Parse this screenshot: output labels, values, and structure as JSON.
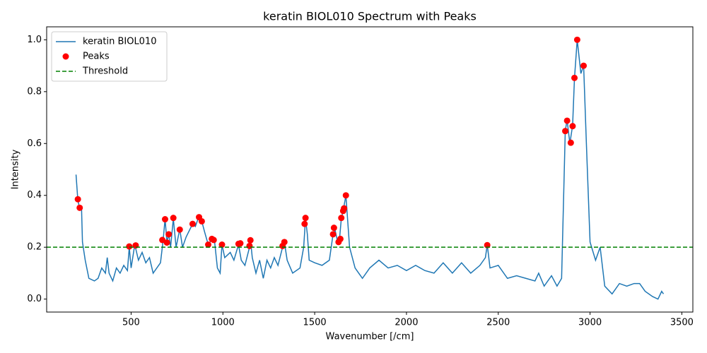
{
  "chart_data": {
    "type": "line",
    "title": "keratin BIOL010 Spectrum with Peaks",
    "xlabel": "Wavenumber [/cm]",
    "ylabel": "Intensity",
    "xlim": [
      40,
      3560
    ],
    "ylim": [
      -0.05,
      1.05
    ],
    "xticks": [
      500,
      1000,
      1500,
      2000,
      2500,
      3000,
      3500
    ],
    "yticks": [
      {
        "value": 0,
        "label": "0.0"
      },
      0.2,
      0.4,
      0.6,
      0.8,
      {
        "value": 1,
        "label": "1.0"
      }
    ],
    "grid": false,
    "legend": "upper left",
    "series": [
      {
        "name": "keratin BIOL010",
        "type": "line",
        "color": "#1f77b4",
        "x": [
          200,
          210,
          220,
          230,
          235,
          250,
          270,
          300,
          320,
          340,
          360,
          370,
          380,
          400,
          420,
          440,
          460,
          480,
          490,
          500,
          520,
          540,
          560,
          580,
          600,
          620,
          640,
          660,
          675,
          685,
          695,
          705,
          715,
          730,
          745,
          765,
          780,
          800,
          835,
          850,
          870,
          885,
          900,
          920,
          940,
          955,
          970,
          985,
          995,
          1010,
          1040,
          1060,
          1085,
          1100,
          1120,
          1145,
          1150,
          1160,
          1180,
          1200,
          1220,
          1240,
          1260,
          1280,
          1300,
          1325,
          1335,
          1350,
          1380,
          1420,
          1440,
          1450,
          1460,
          1470,
          1500,
          1540,
          1580,
          1600,
          1610,
          1625,
          1635,
          1645,
          1655,
          1670,
          1690,
          1720,
          1760,
          1800,
          1850,
          1900,
          1950,
          2000,
          2050,
          2100,
          2150,
          2200,
          2250,
          2300,
          2350,
          2400,
          2430,
          2440,
          2455,
          2500,
          2550,
          2600,
          2650,
          2700,
          2720,
          2750,
          2790,
          2820,
          2845,
          2865,
          2875,
          2890,
          2905,
          2915,
          2930,
          2950,
          2965,
          2980,
          3000,
          3030,
          3055,
          3080,
          3120,
          3160,
          3200,
          3240,
          3270,
          3300,
          3340,
          3370,
          3390,
          3400
        ],
        "values": [
          0.48,
          0.38,
          0.35,
          0.35,
          0.22,
          0.15,
          0.08,
          0.07,
          0.08,
          0.12,
          0.1,
          0.16,
          0.1,
          0.07,
          0.12,
          0.1,
          0.13,
          0.11,
          0.2,
          0.12,
          0.21,
          0.15,
          0.18,
          0.14,
          0.16,
          0.1,
          0.12,
          0.14,
          0.23,
          0.31,
          0.22,
          0.25,
          0.2,
          0.31,
          0.2,
          0.27,
          0.2,
          0.24,
          0.29,
          0.28,
          0.32,
          0.3,
          0.26,
          0.21,
          0.23,
          0.22,
          0.12,
          0.1,
          0.21,
          0.16,
          0.18,
          0.15,
          0.21,
          0.15,
          0.13,
          0.2,
          0.23,
          0.16,
          0.1,
          0.15,
          0.08,
          0.15,
          0.12,
          0.16,
          0.13,
          0.2,
          0.22,
          0.15,
          0.1,
          0.12,
          0.2,
          0.31,
          0.25,
          0.15,
          0.14,
          0.13,
          0.15,
          0.25,
          0.27,
          0.22,
          0.23,
          0.31,
          0.34,
          0.4,
          0.2,
          0.12,
          0.08,
          0.12,
          0.15,
          0.12,
          0.13,
          0.11,
          0.13,
          0.11,
          0.1,
          0.14,
          0.1,
          0.14,
          0.1,
          0.13,
          0.16,
          0.21,
          0.12,
          0.13,
          0.08,
          0.09,
          0.08,
          0.07,
          0.1,
          0.05,
          0.09,
          0.05,
          0.08,
          0.65,
          0.69,
          0.6,
          0.67,
          0.85,
          1.0,
          0.87,
          0.9,
          0.6,
          0.22,
          0.15,
          0.2,
          0.05,
          0.02,
          0.06,
          0.05,
          0.06,
          0.06,
          0.03,
          0.01,
          0.0,
          0.03,
          0.02
        ]
      },
      {
        "name": "Peaks",
        "type": "scatter",
        "color": "#ff0000",
        "x": [
          210,
          220,
          490,
          525,
          670,
          685,
          695,
          705,
          730,
          765,
          835,
          870,
          885,
          920,
          940,
          950,
          995,
          1085,
          1095,
          1145,
          1150,
          1325,
          1335,
          1445,
          1450,
          1600,
          1605,
          1630,
          1640,
          1645,
          1655,
          1660,
          1670,
          2440,
          2865,
          2875,
          2895,
          2905,
          2915,
          2930,
          2965
        ],
        "values": [
          0.385,
          0.352,
          0.203,
          0.207,
          0.228,
          0.308,
          0.218,
          0.25,
          0.313,
          0.268,
          0.29,
          0.316,
          0.3,
          0.21,
          0.232,
          0.228,
          0.21,
          0.213,
          0.215,
          0.205,
          0.227,
          0.205,
          0.22,
          0.29,
          0.313,
          0.25,
          0.275,
          0.22,
          0.232,
          0.313,
          0.34,
          0.35,
          0.4,
          0.208,
          0.648,
          0.688,
          0.603,
          0.667,
          0.853,
          1.0,
          0.9
        ]
      },
      {
        "name": "Threshold",
        "type": "hline",
        "color": "#008000",
        "value": 0.2
      }
    ]
  }
}
